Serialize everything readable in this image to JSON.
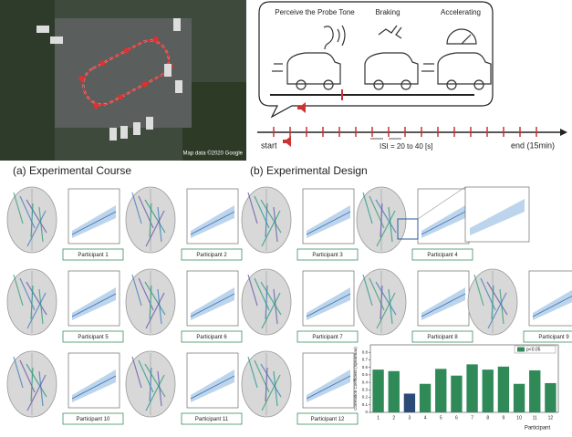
{
  "map": {
    "credit": "Map data ©2020 Google"
  },
  "design": {
    "steps": [
      "Perceive the Probe Tone",
      "Braking",
      "Accelerating"
    ],
    "start": "start",
    "isi": "ISI = 20 to 40 [s]",
    "end": "end (15min)"
  },
  "captions": [
    "(a) Experimental Course",
    "(b) Experimental Design"
  ],
  "panels": [
    {
      "label": "Participant 1"
    },
    {
      "label": "Participant 2"
    },
    {
      "label": "Participant 3"
    },
    {
      "label": "Participant 4"
    },
    {
      "label": "Participant 5"
    },
    {
      "label": "Participant 6"
    },
    {
      "label": "Participant 7"
    },
    {
      "label": "Participant 8"
    },
    {
      "label": "Participant 9"
    },
    {
      "label": "Participant 10"
    },
    {
      "label": "Participant 11"
    },
    {
      "label": "Participant 12"
    }
  ],
  "chart_data": {
    "type": "bar",
    "x_label": "Participant",
    "y_label": "Correlation Coefficient (Spearman)",
    "categories": [
      "1",
      "2",
      "3",
      "4",
      "5",
      "6",
      "7",
      "8",
      "9",
      "10",
      "11",
      "12"
    ],
    "series": [
      {
        "name": "p<0.05",
        "color": "#2f8a57",
        "values": [
          0.57,
          0.55,
          0.25,
          0.38,
          0.58,
          0.49,
          0.64,
          0.57,
          0.61,
          0.38,
          0.56,
          0.39
        ]
      }
    ],
    "bar_colors": [
      "#2f8a57",
      "#2f8a57",
      "#2b4a78",
      "#2f8a57",
      "#2f8a57",
      "#2f8a57",
      "#2f8a57",
      "#2f8a57",
      "#2f8a57",
      "#2f8a57",
      "#2f8a57",
      "#2f8a57"
    ],
    "ylim": [
      0,
      0.9
    ],
    "yticks": [
      0,
      0.1,
      0.2,
      0.3,
      0.4,
      0.5,
      0.6,
      0.7,
      0.8
    ],
    "legend": "top-right"
  }
}
